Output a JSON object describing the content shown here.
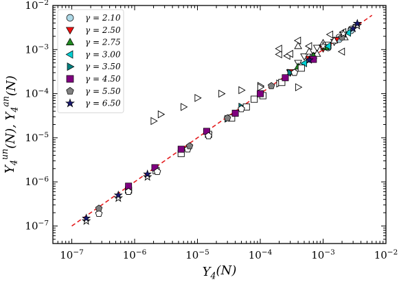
{
  "chart_data": {
    "type": "scatter",
    "log_x": true,
    "log_y": true,
    "xlim": [
      5e-08,
      0.01
    ],
    "ylim": [
      4e-08,
      0.01
    ],
    "xlabel": "Y_4(N)",
    "ylabel": "Y_4^un(N), Y_4^an(N)",
    "x_ticks": [
      "10^{-7}",
      "10^{-6}",
      "10^{-5}",
      "10^{-4}",
      "10^{-3}",
      "10^{-2}"
    ],
    "y_ticks": [
      "10^{-7}",
      "10^{-6}",
      "10^{-5}",
      "10^{-4}",
      "10^{-3}",
      "10^{-2}"
    ],
    "legend_placement": "top-left",
    "reference_line": {
      "style": "dashed",
      "color": "#e31a1c",
      "x": [
        1e-07,
        0.006
      ],
      "y": [
        1e-07,
        0.006
      ]
    },
    "series": [
      {
        "name": "γ = 2.10",
        "marker": "circle",
        "color": "#add8e6",
        "filled": [
          [
            0.0007,
            0.0007
          ],
          [
            0.0012,
            0.0011
          ],
          [
            0.0018,
            0.0017
          ],
          [
            0.0028,
            0.0027
          ]
        ],
        "open": [
          [
            0.0007,
            0.00072
          ],
          [
            0.0012,
            0.00125
          ],
          [
            0.0018,
            0.0019
          ],
          [
            0.0028,
            0.0029
          ]
        ]
      },
      {
        "name": "γ = 2.50",
        "marker": "triangle-down",
        "color": "#ee1111",
        "filled": [
          [
            0.0003,
            0.00031
          ],
          [
            0.0006,
            0.00062
          ],
          [
            0.001,
            0.00105
          ],
          [
            0.0016,
            0.00165
          ]
        ],
        "open": [
          [
            0.0003,
            0.0003
          ],
          [
            0.0004,
            0.0005
          ],
          [
            0.0005,
            0.0007
          ],
          [
            0.0008,
            0.0011
          ],
          [
            0.0012,
            0.0013
          ],
          [
            0.0015,
            0.0015
          ]
        ]
      },
      {
        "name": "γ = 2.75",
        "marker": "triangle-up",
        "color": "#228b22",
        "filled": [
          [
            0.0004,
            0.00041
          ],
          [
            0.0007,
            0.00072
          ],
          [
            0.0011,
            0.00112
          ]
        ],
        "open": [
          [
            0.0004,
            0.0012
          ],
          [
            0.0006,
            0.0009
          ],
          [
            0.0008,
            0.0008
          ],
          [
            0.001,
            0.0014
          ],
          [
            0.0015,
            0.0016
          ],
          [
            0.0022,
            0.0019
          ]
        ]
      },
      {
        "name": "γ = 3.00",
        "marker": "triangle-left",
        "color": "#00ced1",
        "filled": [
          [
            0.0005,
            0.00049
          ],
          [
            0.0012,
            0.0012
          ],
          [
            0.0025,
            0.0024
          ]
        ],
        "open": [
          [
            0.0002,
            0.00078
          ],
          [
            0.00027,
            0.00072
          ],
          [
            0.0003,
            0.0008
          ],
          [
            0.0002,
            0.00105
          ],
          [
            0.0004,
            0.0016
          ],
          [
            0.0006,
            0.0012
          ],
          [
            0.0013,
            0.0022
          ],
          [
            0.0021,
            0.0025
          ],
          [
            0.002,
            0.0009
          ]
        ]
      },
      {
        "name": "γ = 3.50",
        "marker": "triangle-right",
        "color": "#008080",
        "filled": [
          [
            1.5e-05,
            1.3e-05
          ],
          [
            3e-05,
            2.7e-05
          ],
          [
            5e-05,
            5.1e-05
          ],
          [
            0.0001,
            0.0001
          ],
          [
            0.0003,
            0.0003
          ]
        ],
        "open": [
          [
            2e-06,
            2.4e-05
          ],
          [
            2.6e-06,
            3.4e-05
          ],
          [
            6e-06,
            5e-05
          ],
          [
            1e-05,
            8e-05
          ],
          [
            2.4e-05,
            0.0001
          ],
          [
            5e-05,
            0.00012
          ],
          [
            0.0001,
            0.00015
          ],
          [
            0.0002,
            0.00017
          ],
          [
            0.0001,
            0.00014
          ],
          [
            0.0004,
            0.00014
          ]
        ]
      },
      {
        "name": "γ = 4.50",
        "marker": "square",
        "color": "#800080",
        "filled": [
          [
            8e-07,
            8e-07
          ],
          [
            2.1e-06,
            2.1e-06
          ],
          [
            5.5e-06,
            5.5e-06
          ],
          [
            1.4e-05,
            1.4e-05
          ],
          [
            4e-05,
            3.6e-05
          ],
          [
            0.0001,
            0.0001
          ],
          [
            0.00025,
            0.00023
          ],
          [
            0.0007,
            0.0006
          ]
        ],
        "open": [
          [
            8e-07,
            6.5e-07
          ],
          [
            2.2e-06,
            1.8e-06
          ],
          [
            5.5e-06,
            4.4e-06
          ],
          [
            1.5e-05,
            1.2e-05
          ],
          [
            3.5e-05,
            2.8e-05
          ],
          [
            6e-05,
            5e-05
          ],
          [
            8e-05,
            7.5e-05
          ],
          [
            0.00011,
            9e-05
          ],
          [
            0.00022,
            0.00018
          ],
          [
            0.00045,
            0.00038
          ]
        ]
      },
      {
        "name": "γ = 5.50",
        "marker": "pentagon",
        "color": "#808080",
        "filled": [
          [
            2.7e-07,
            2.5e-07
          ],
          [
            7.5e-06,
            6.5e-06
          ],
          [
            3e-05,
            2.8e-05
          ],
          [
            0.00015,
            0.00015
          ],
          [
            0.002,
            0.0019
          ]
        ],
        "open": [
          [
            2.7e-07,
            1.9e-07
          ],
          [
            8e-07,
            6e-07
          ],
          [
            2.3e-06,
            1.7e-06
          ],
          [
            7e-06,
            5.5e-06
          ],
          [
            1.5e-05,
            1.1e-05
          ],
          [
            5e-05,
            4.5e-05
          ],
          [
            0.00035,
            0.0003
          ]
        ]
      },
      {
        "name": "γ = 6.50",
        "marker": "star",
        "color": "#191970",
        "filled": [
          [
            1.7e-07,
            1.5e-07
          ],
          [
            5.5e-07,
            5e-07
          ],
          [
            1.6e-06,
            1.5e-06
          ],
          [
            0.0006,
            0.00058
          ],
          [
            0.003,
            0.003
          ],
          [
            0.0035,
            0.0039
          ]
        ],
        "open": [
          [
            1.7e-07,
            1.3e-07
          ],
          [
            5.5e-07,
            4.3e-07
          ],
          [
            1.6e-06,
            1.3e-06
          ],
          [
            0.001,
            0.0012
          ],
          [
            0.0021,
            0.0023
          ],
          [
            0.0035,
            0.0035
          ]
        ]
      }
    ]
  }
}
